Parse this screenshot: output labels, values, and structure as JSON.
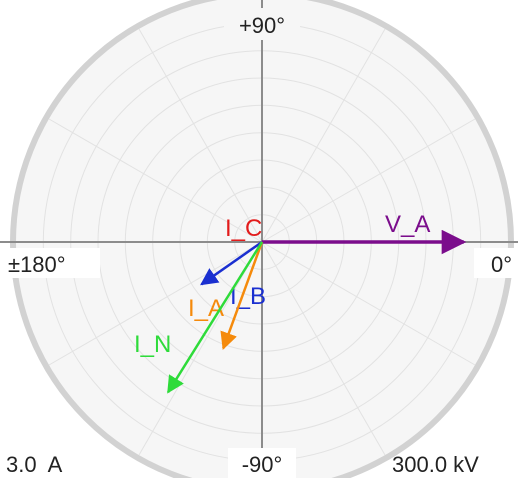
{
  "chart_data": {
    "type": "polar-phasor",
    "angle_labels": {
      "top": "+90°",
      "bottom": "-90°",
      "left": "±180°",
      "right": "0°"
    },
    "scale_labels": {
      "current": "3.0  A",
      "voltage": "300.0 kV"
    },
    "ring_count": 8,
    "spoke_step_deg": 30,
    "grid": true,
    "phasors": [
      {
        "name": "V_A",
        "angle_deg": 0,
        "magnitude": 0.82,
        "color": "#7B0D8C"
      },
      {
        "name": "I_C",
        "angle_deg": -80,
        "magnitude": 0.02,
        "color": "#E21B1B"
      },
      {
        "name": "I_B",
        "angle_deg": -145,
        "magnitude": 0.3,
        "color": "#1A2FD0"
      },
      {
        "name": "I_A",
        "angle_deg": -110,
        "magnitude": 0.46,
        "color": "#F58A0B"
      },
      {
        "name": "I_N",
        "angle_deg": -122,
        "magnitude": 0.72,
        "color": "#2EDB3A"
      }
    ]
  }
}
